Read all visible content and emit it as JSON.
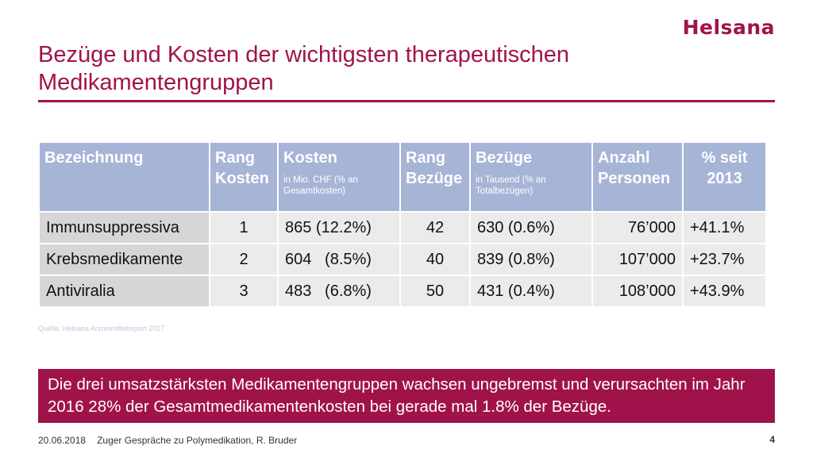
{
  "brand": {
    "logo_text": "Helsana"
  },
  "title": "Bezüge und Kosten der wichtigsten therapeutischen Medikamentengruppen",
  "colors": {
    "accent": "#a0134a",
    "header_bg": "#a6b4d6",
    "row_label_bg": "#d6d6d6",
    "row_bg": "#ebebeb",
    "source_text": "#c0c6dc"
  },
  "table": {
    "headers": [
      {
        "label": "Bezeichnung",
        "sub": ""
      },
      {
        "label": "Rang Kosten",
        "sub": ""
      },
      {
        "label": "Kosten",
        "sub": "in Mio. CHF (% an Gesamtkosten)"
      },
      {
        "label": "Rang Bezüge",
        "sub": ""
      },
      {
        "label": "Bezüge",
        "sub": "in Tausend (% an Totalbezügen)"
      },
      {
        "label": "Anzahl Personen",
        "sub": ""
      },
      {
        "label": "% seit 2013",
        "sub": ""
      }
    ],
    "rows": [
      {
        "name": "Immunsuppressiva",
        "rang_kosten": "1",
        "kosten": "865 (12.2%)",
        "rang_bezuege": "42",
        "bezuege": "630 (0.6%)",
        "personen": "76’000",
        "seit_2013": "+41.1%"
      },
      {
        "name": "Krebsmedikamente",
        "rang_kosten": "2",
        "kosten": "604   (8.5%)",
        "rang_bezuege": "40",
        "bezuege": "839 (0.8%)",
        "personen": "107’000",
        "seit_2013": "+23.7%"
      },
      {
        "name": "Antiviralia",
        "rang_kosten": "3",
        "kosten": "483   (6.8%)",
        "rang_bezuege": "50",
        "bezuege": "431 (0.4%)",
        "personen": "108’000",
        "seit_2013": "+43.9%"
      }
    ]
  },
  "source": "Quelle: Helsana Arzneimittelreport 2017",
  "callout": "Die drei umsatzstärksten Medikamentengruppen wachsen ungebremst und verursachten im Jahr 2016 28% der Gesamtmedikamentenkosten bei gerade mal 1.8% der Bezüge.",
  "footer": {
    "date": "20.06.2018",
    "event": "Zuger Gespräche zu Polymedikation, R. Bruder",
    "page": "4"
  }
}
